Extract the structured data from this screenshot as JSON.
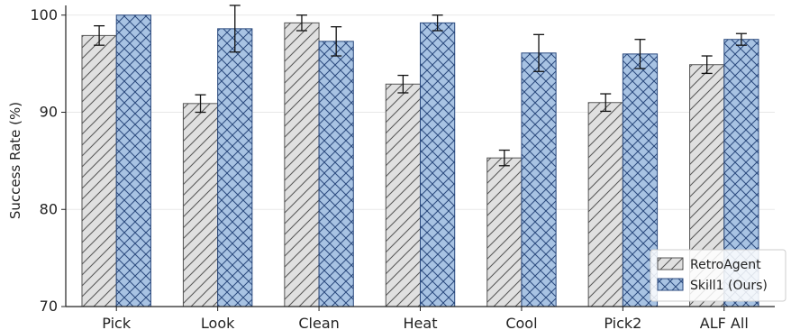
{
  "chart_data": {
    "type": "bar",
    "title": "",
    "xlabel": "",
    "ylabel": "Success Rate (%)",
    "ylim": [
      70,
      101
    ],
    "yticks": [
      70,
      80,
      90,
      100
    ],
    "grid": "horizontal",
    "legend_position": "bottom-right",
    "categories": [
      "Pick",
      "Look",
      "Clean",
      "Heat",
      "Cool",
      "Pick2",
      "ALF All"
    ],
    "series": [
      {
        "name": "RetroAgent",
        "values": [
          97.9,
          90.9,
          99.2,
          92.9,
          85.3,
          91.0,
          94.9
        ],
        "errors": [
          1.0,
          0.9,
          0.8,
          0.9,
          0.8,
          0.9,
          0.9
        ],
        "fill": "#e0e0e0",
        "edge": "#555555",
        "hatch": "diagonal"
      },
      {
        "name": "Skill1 (Ours)",
        "values": [
          100.0,
          98.6,
          97.3,
          99.2,
          96.1,
          96.0,
          97.5
        ],
        "errors": [
          0.0,
          2.4,
          1.5,
          0.8,
          1.9,
          1.5,
          0.6
        ],
        "fill": "#a8c3e3",
        "edge": "#2b4a7e",
        "hatch": "cross"
      }
    ]
  }
}
